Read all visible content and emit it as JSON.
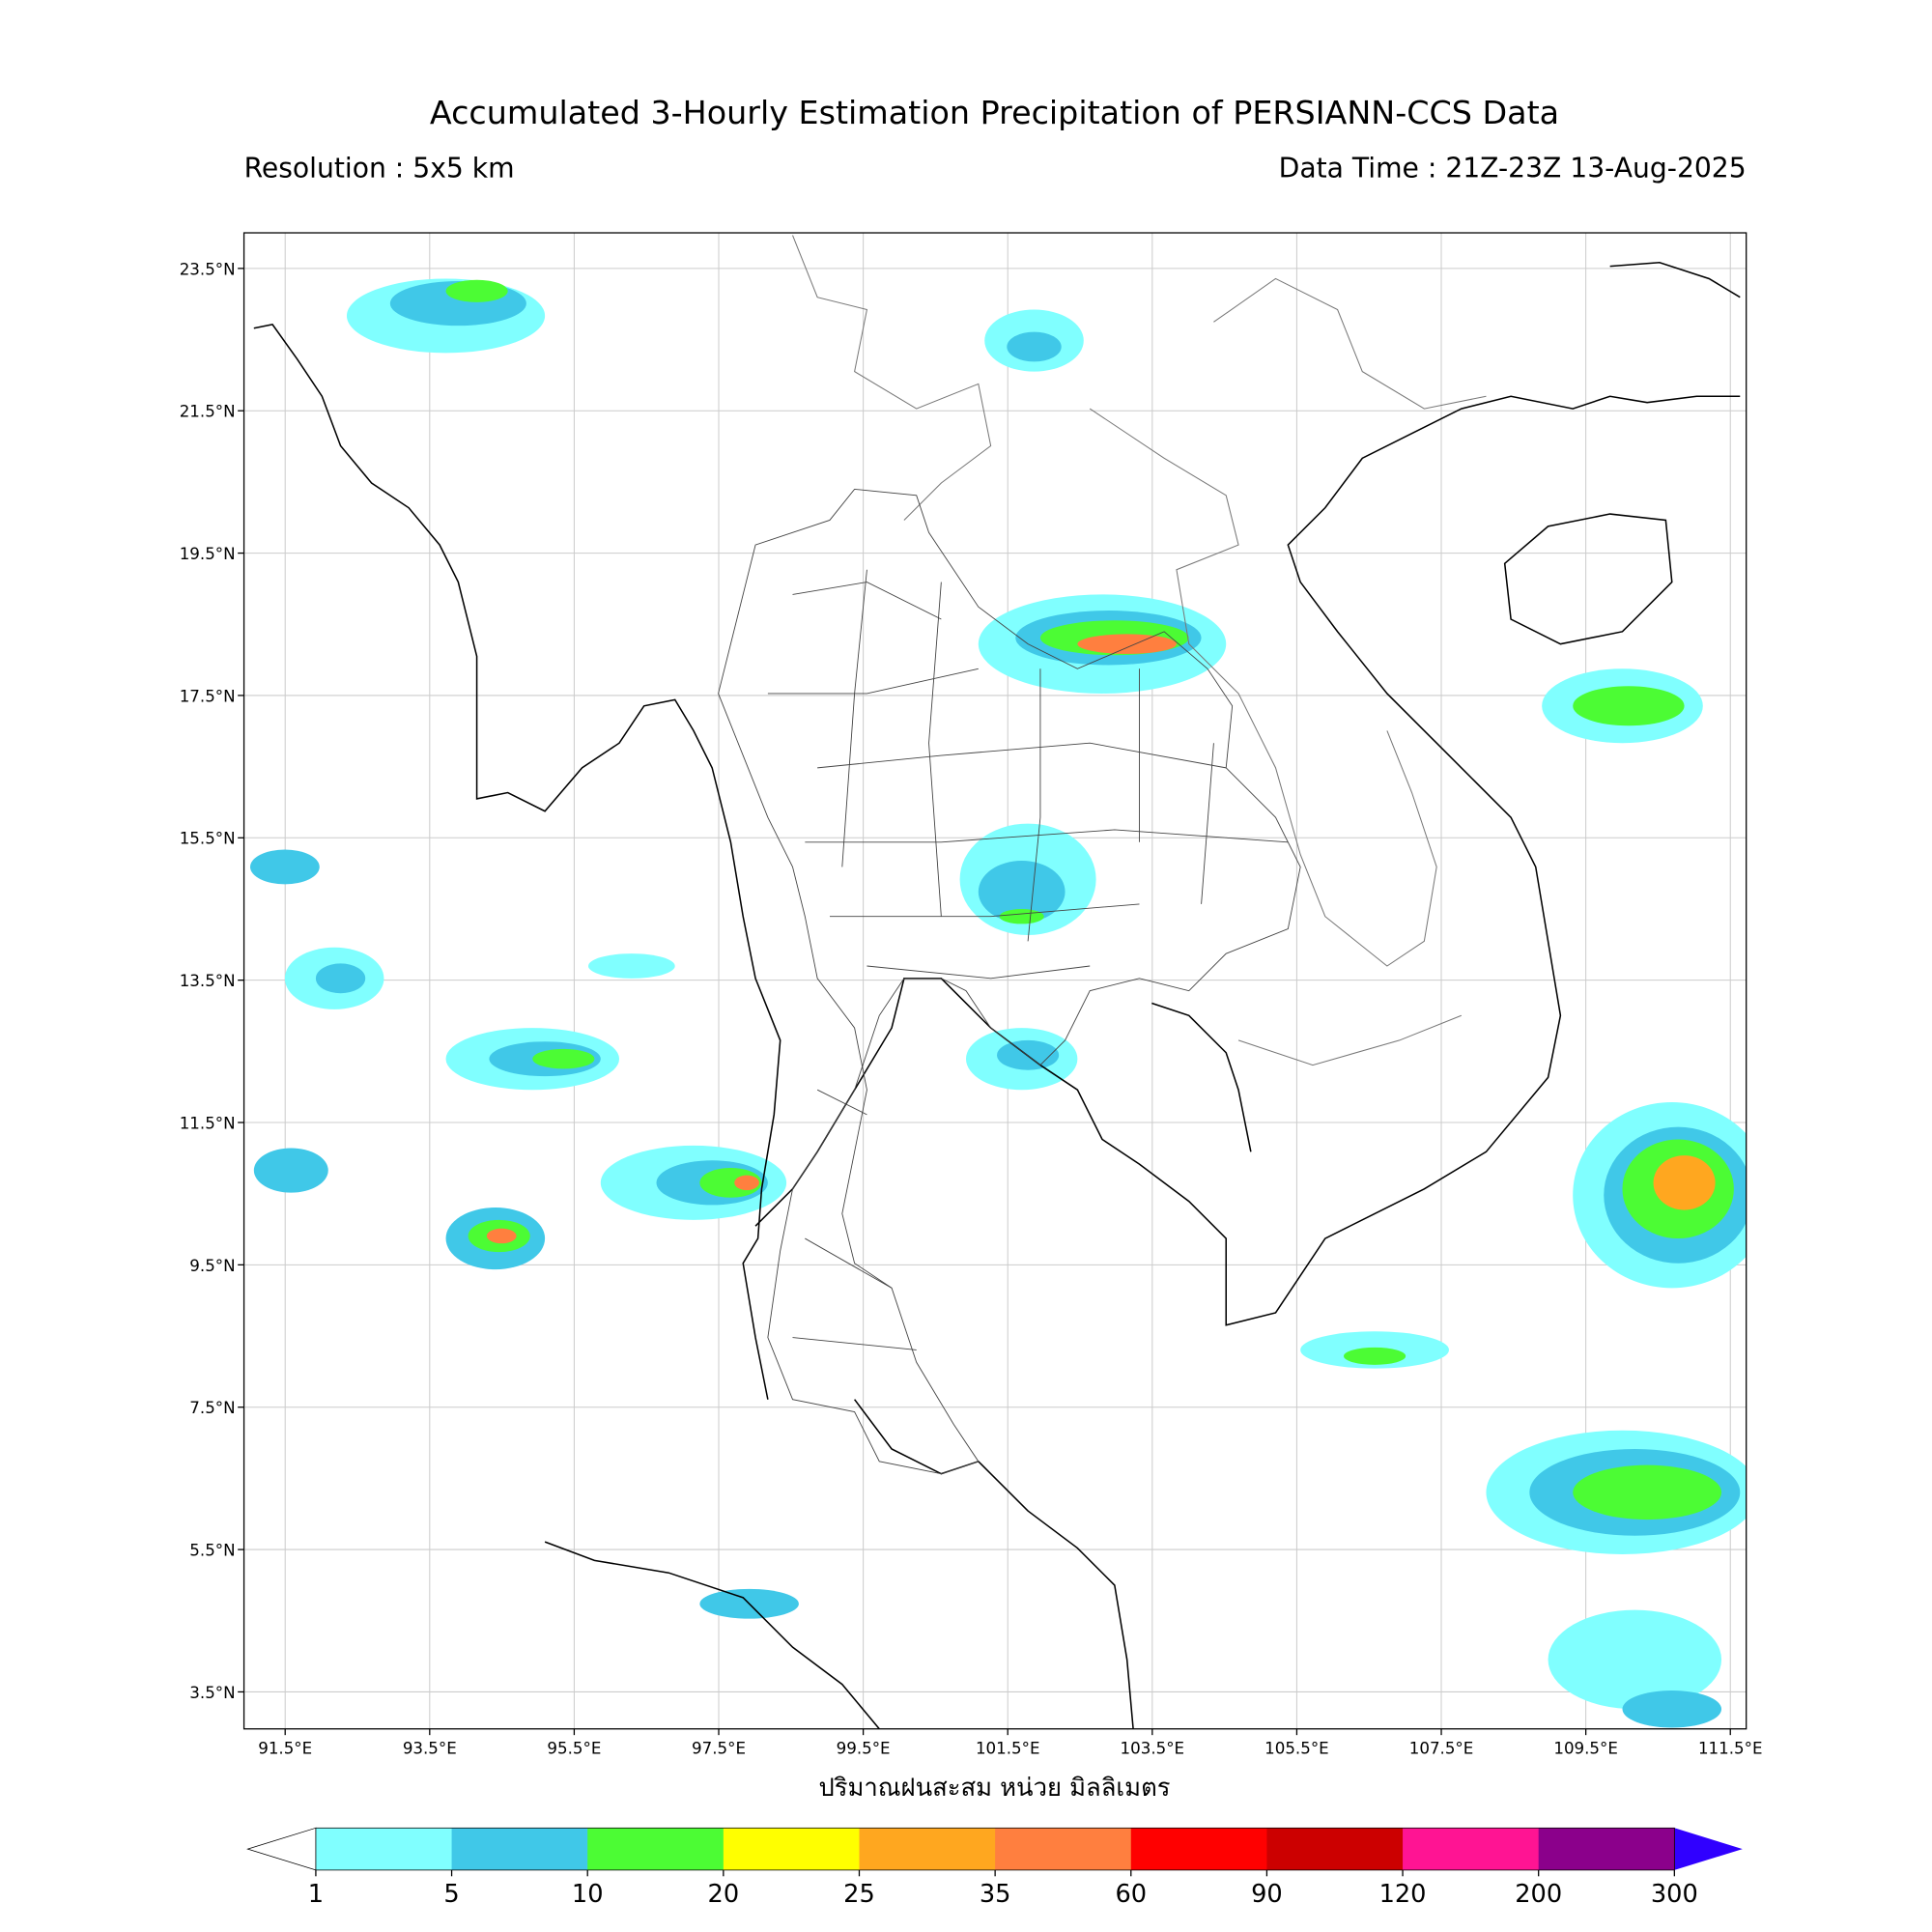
{
  "title": "Accumulated 3-Hourly Estimation Precipitation of PERSIANN-CCS Data",
  "subtitle_left": "Resolution : 5x5 km",
  "subtitle_right": "Data Time : 21Z-23Z 13-Aug-2025",
  "map": {
    "xlim": [
      90.93,
      111.72
    ],
    "ylim": [
      2.98,
      24.0
    ],
    "grid": true,
    "xticks": [
      {
        "value": 91.5,
        "label": "91.5°E"
      },
      {
        "value": 93.5,
        "label": "93.5°E"
      },
      {
        "value": 95.5,
        "label": "95.5°E"
      },
      {
        "value": 97.5,
        "label": "97.5°E"
      },
      {
        "value": 99.5,
        "label": "99.5°E"
      },
      {
        "value": 101.5,
        "label": "101.5°E"
      },
      {
        "value": 103.5,
        "label": "103.5°E"
      },
      {
        "value": 105.5,
        "label": "105.5°E"
      },
      {
        "value": 107.5,
        "label": "107.5°E"
      },
      {
        "value": 109.5,
        "label": "109.5°E"
      },
      {
        "value": 111.5,
        "label": "111.5°E"
      }
    ],
    "yticks": [
      {
        "value": 23.5,
        "label": "23.5°N"
      },
      {
        "value": 21.5,
        "label": "21.5°N"
      },
      {
        "value": 19.5,
        "label": "19.5°N"
      },
      {
        "value": 17.5,
        "label": "17.5°N"
      },
      {
        "value": 15.5,
        "label": "15.5°N"
      },
      {
        "value": 13.5,
        "label": "13.5°N"
      },
      {
        "value": 11.5,
        "label": "11.5°N"
      },
      {
        "value": 9.5,
        "label": "9.5°N"
      },
      {
        "value": 7.5,
        "label": "7.5°N"
      },
      {
        "value": 5.5,
        "label": "5.5°N"
      },
      {
        "value": 3.5,
        "label": "3.5°N"
      }
    ]
  },
  "xlabel": "ปริมาณฝนสะสม หน่วย มิลลิเมตร",
  "colorbar": {
    "levels": [
      1,
      5,
      10,
      20,
      25,
      35,
      60,
      90,
      120,
      200,
      300
    ],
    "colors": [
      "#80ffff",
      "#40c8e8",
      "#4cfc34",
      "#ffff00",
      "#ffa71f",
      "#ff7f3f",
      "#ff0000",
      "#cc0000",
      "#ff1493",
      "#8b008b"
    ],
    "under_color": "#ffffff",
    "over_color": "#3000ff"
  }
}
